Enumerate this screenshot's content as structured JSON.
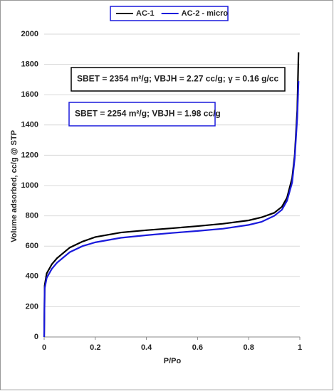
{
  "chart_data": {
    "type": "line",
    "x_label": "P/Po",
    "y_label": "Volume adsorbed, cc/g @ STP",
    "x": [
      0,
      0.002,
      0.01,
      0.03,
      0.05,
      0.1,
      0.15,
      0.2,
      0.3,
      0.4,
      0.5,
      0.6,
      0.7,
      0.8,
      0.85,
      0.9,
      0.93,
      0.95,
      0.97,
      0.98,
      0.99,
      0.995
    ],
    "series": [
      {
        "name": "AC-1",
        "color": "#000000",
        "values": [
          0,
          340,
          420,
          480,
          520,
          590,
          630,
          660,
          690,
          705,
          718,
          732,
          748,
          770,
          790,
          820,
          860,
          920,
          1050,
          1200,
          1500,
          1880
        ]
      },
      {
        "name": "AC-2 - micro",
        "color": "#1a1adc",
        "values": [
          0,
          320,
          390,
          450,
          490,
          560,
          600,
          625,
          655,
          672,
          687,
          700,
          715,
          740,
          760,
          800,
          840,
          900,
          1020,
          1180,
          1450,
          1690
        ]
      }
    ],
    "xlim": [
      0,
      1
    ],
    "xticks": [
      0,
      0.2,
      0.4,
      0.6,
      0.8,
      1
    ],
    "ylim": [
      0,
      2000
    ],
    "yticks": [
      0,
      200,
      400,
      600,
      800,
      1000,
      1200,
      1400,
      1600,
      1800,
      2000
    ],
    "grid": true,
    "legend": "top",
    "annotations": [
      {
        "text": "SBET = 2354 m²/g; VBJH = 2.27 cc/g; γ = 0.16 g/cc",
        "color": "#000000"
      },
      {
        "text": "SBET = 2254 m²/g; VBJH = 1.98 cc/g",
        "color": "#1a1adc"
      }
    ]
  }
}
